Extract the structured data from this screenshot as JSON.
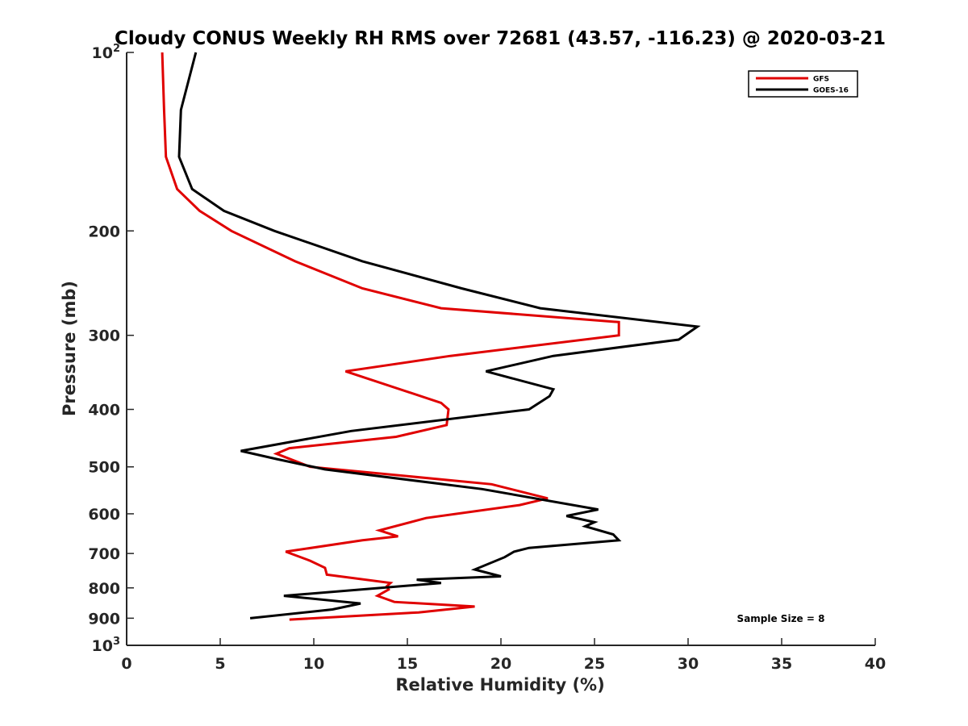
{
  "chart_data": {
    "type": "line",
    "title": "Cloudy CONUS Weekly RH RMS over 72681 (43.57, -116.23) @ 2020-03-21",
    "xlabel": "Relative Humidity (%)",
    "ylabel": "Pressure (mb)",
    "xlim": [
      0,
      40
    ],
    "ylim": [
      100,
      1000
    ],
    "y_scale": "log",
    "y_reversed": true,
    "grid": false,
    "legend_position": "top-right",
    "x_ticks": [
      0,
      5,
      10,
      15,
      20,
      25,
      30,
      35,
      40
    ],
    "x_tick_labels": [
      "0",
      "5",
      "10",
      "15",
      "20",
      "25",
      "30",
      "35",
      "40"
    ],
    "y_ticks": [
      100,
      200,
      300,
      400,
      500,
      600,
      700,
      800,
      900,
      1000
    ],
    "y_tick_labels": [
      {
        "base": "10",
        "exp": "2"
      },
      {
        "base": "200",
        "exp": ""
      },
      {
        "base": "300",
        "exp": ""
      },
      {
        "base": "400",
        "exp": ""
      },
      {
        "base": "500",
        "exp": ""
      },
      {
        "base": "600",
        "exp": ""
      },
      {
        "base": "700",
        "exp": ""
      },
      {
        "base": "800",
        "exp": ""
      },
      {
        "base": "900",
        "exp": ""
      },
      {
        "base": "10",
        "exp": "3"
      }
    ],
    "series": [
      {
        "name": "GFS",
        "color": "#e00000",
        "points": [
          [
            1.9,
            100
          ],
          [
            2.0,
            125
          ],
          [
            2.1,
            150
          ],
          [
            2.7,
            170
          ],
          [
            3.9,
            185
          ],
          [
            5.6,
            200
          ],
          [
            9.0,
            225
          ],
          [
            12.6,
            250
          ],
          [
            16.8,
            270
          ],
          [
            26.3,
            285
          ],
          [
            26.3,
            300
          ],
          [
            17.3,
            325
          ],
          [
            11.7,
            345
          ],
          [
            16.8,
            390
          ],
          [
            17.2,
            400
          ],
          [
            17.1,
            425
          ],
          [
            14.4,
            445
          ],
          [
            8.7,
            465
          ],
          [
            8.0,
            475
          ],
          [
            9.8,
            500
          ],
          [
            19.5,
            535
          ],
          [
            22.5,
            565
          ],
          [
            21.0,
            580
          ],
          [
            16.0,
            610
          ],
          [
            13.5,
            640
          ],
          [
            14.5,
            655
          ],
          [
            12.6,
            665
          ],
          [
            8.5,
            695
          ],
          [
            9.8,
            720
          ],
          [
            10.6,
            740
          ],
          [
            10.7,
            760
          ],
          [
            14.1,
            785
          ],
          [
            13.9,
            795
          ],
          [
            14.0,
            805
          ],
          [
            13.4,
            825
          ],
          [
            14.3,
            845
          ],
          [
            18.6,
            860
          ],
          [
            15.6,
            880
          ],
          [
            8.7,
            905
          ]
        ]
      },
      {
        "name": "GOES-16",
        "color": "#000000",
        "points": [
          [
            3.7,
            100
          ],
          [
            2.9,
            125
          ],
          [
            2.8,
            150
          ],
          [
            3.5,
            170
          ],
          [
            5.2,
            185
          ],
          [
            7.9,
            200
          ],
          [
            12.6,
            225
          ],
          [
            17.9,
            250
          ],
          [
            22.1,
            270
          ],
          [
            30.5,
            290
          ],
          [
            29.5,
            305
          ],
          [
            22.8,
            325
          ],
          [
            19.2,
            345
          ],
          [
            22.8,
            370
          ],
          [
            22.6,
            380
          ],
          [
            21.5,
            400
          ],
          [
            12.0,
            435
          ],
          [
            6.1,
            470
          ],
          [
            8.0,
            485
          ],
          [
            10.6,
            505
          ],
          [
            19.0,
            545
          ],
          [
            25.2,
            590
          ],
          [
            23.5,
            605
          ],
          [
            25.0,
            620
          ],
          [
            24.5,
            630
          ],
          [
            26.0,
            650
          ],
          [
            26.3,
            665
          ],
          [
            21.5,
            685
          ],
          [
            20.7,
            695
          ],
          [
            20.2,
            710
          ],
          [
            18.6,
            745
          ],
          [
            20.0,
            765
          ],
          [
            15.5,
            775
          ],
          [
            16.8,
            785
          ],
          [
            8.4,
            825
          ],
          [
            12.5,
            850
          ],
          [
            11.0,
            870
          ],
          [
            6.6,
            900
          ]
        ]
      }
    ],
    "legend": [
      {
        "label": "GFS",
        "color": "#e00000"
      },
      {
        "label": "GOES-16",
        "color": "#000000"
      }
    ],
    "annotations": [
      {
        "text": "Sample Size = 8"
      }
    ]
  }
}
